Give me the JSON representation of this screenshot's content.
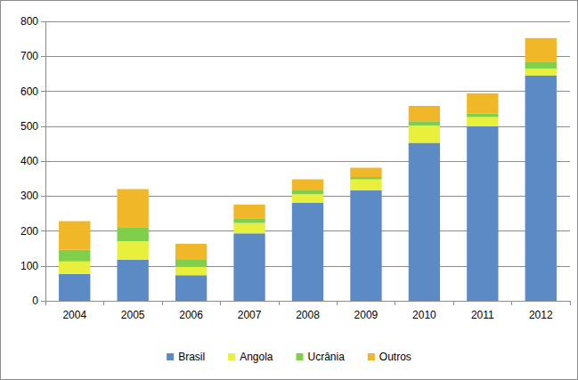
{
  "chart_data": {
    "type": "bar",
    "stacked": true,
    "grid": true,
    "legend": "bottom",
    "categories": [
      "2004",
      "2005",
      "2006",
      "2007",
      "2008",
      "2009",
      "2010",
      "2011",
      "2012"
    ],
    "series": [
      {
        "name": "Brasil",
        "color": "#5b8ac4",
        "values": [
          77,
          118,
          73,
          193,
          280,
          316,
          452,
          500,
          645
        ]
      },
      {
        "name": "Angola",
        "color": "#e8f03c",
        "values": [
          36,
          53,
          24,
          30,
          25,
          32,
          50,
          26,
          20
        ]
      },
      {
        "name": "Ucrânia",
        "color": "#7fcf4a",
        "values": [
          33,
          40,
          20,
          13,
          11,
          6,
          12,
          10,
          20
        ]
      },
      {
        "name": "Outros",
        "color": "#f0b828",
        "values": [
          82,
          109,
          46,
          40,
          32,
          27,
          44,
          58,
          67
        ]
      }
    ],
    "ylim": [
      0,
      800
    ],
    "yticks": [
      0,
      100,
      200,
      300,
      400,
      500,
      600,
      700,
      800
    ]
  }
}
